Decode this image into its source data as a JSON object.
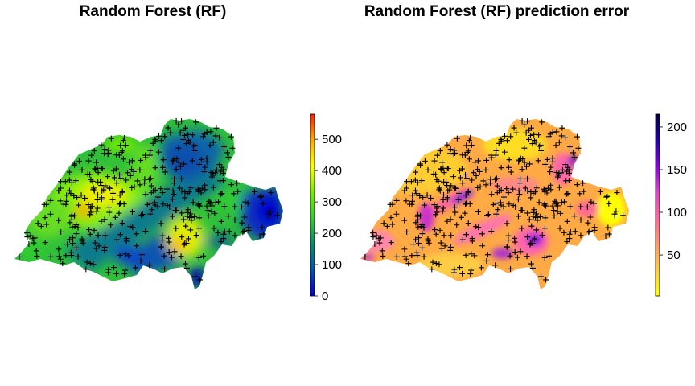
{
  "panels": [
    {
      "title": "Random Forest (RF)",
      "colorbar": {
        "ticks": [
          0,
          100,
          200,
          300,
          400,
          500
        ],
        "labels": [
          "0",
          "100",
          "200",
          "300",
          "400",
          "500"
        ],
        "range": [
          0,
          580
        ],
        "colors": [
          "#0000cc",
          "#0a4fae",
          "#0a8a6a",
          "#33cc33",
          "#77ee00",
          "#ffff00",
          "#ffaa00",
          "#ff2200"
        ]
      }
    },
    {
      "title": "Random Forest (RF) prediction error",
      "colorbar": {
        "ticks": [
          50,
          100,
          150,
          200
        ],
        "labels": [
          "50",
          "100",
          "150",
          "200"
        ],
        "range": [
          2,
          215
        ],
        "colors": [
          "#ffff00",
          "#ffcc44",
          "#ff9966",
          "#ff6699",
          "#dd44cc",
          "#8800dd",
          "#2200aa",
          "#000040"
        ]
      }
    }
  ],
  "chart_data": [
    {
      "type": "heatmap",
      "title": "Random Forest (RF)",
      "zlim": [
        0,
        580
      ],
      "legend": "right"
    },
    {
      "type": "heatmap",
      "title": "Random Forest (RF) prediction error",
      "zlim": [
        2,
        215
      ],
      "legend": "right"
    }
  ]
}
